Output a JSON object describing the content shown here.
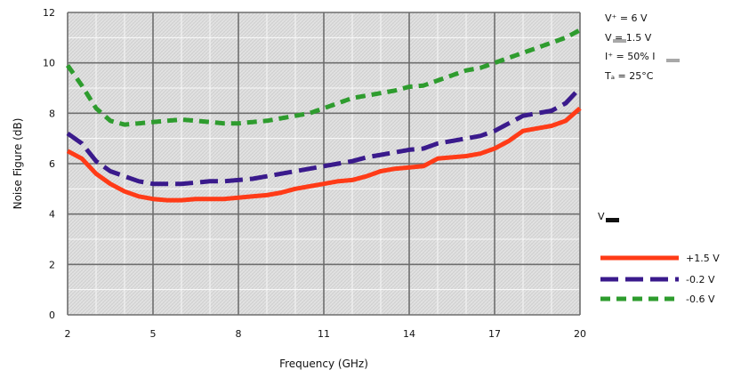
{
  "chart_data": {
    "type": "line",
    "title": "",
    "xlabel": "Frequency (GHz)",
    "ylabel": "Noise Figure (dB)",
    "xlim": [
      2,
      20
    ],
    "ylim": [
      0,
      12
    ],
    "xticks": [
      2,
      5,
      8,
      11,
      14,
      17,
      20
    ],
    "yticks": [
      0,
      2,
      4,
      6,
      8,
      10,
      12
    ],
    "grid": true,
    "legend_title": "V",
    "legend_placement": "right",
    "conditions": [
      "V⁺ = 6 V",
      "V = 1.5 V",
      "I⁺ = 50% I",
      "Tₐ = 25°C"
    ],
    "series": [
      {
        "name": "+1.5 V",
        "color": "#ff3b17",
        "dash": "solid",
        "x": [
          2,
          2.5,
          3,
          3.5,
          4,
          4.5,
          5,
          5.5,
          6,
          6.5,
          7,
          7.5,
          8,
          8.5,
          9,
          9.5,
          10,
          10.5,
          11,
          11.5,
          12,
          12.5,
          13,
          13.5,
          14,
          14.5,
          15,
          15.5,
          16,
          16.5,
          17,
          17.5,
          18,
          18.5,
          19,
          19.5,
          20
        ],
        "values": [
          6.5,
          6.2,
          5.6,
          5.2,
          4.9,
          4.7,
          4.6,
          4.55,
          4.55,
          4.6,
          4.6,
          4.6,
          4.65,
          4.7,
          4.75,
          4.85,
          5.0,
          5.1,
          5.2,
          5.3,
          5.35,
          5.5,
          5.7,
          5.8,
          5.85,
          5.9,
          6.2,
          6.25,
          6.3,
          6.4,
          6.6,
          6.9,
          7.3,
          7.4,
          7.5,
          7.7,
          8.2
        ]
      },
      {
        "name": "-0.2 V",
        "color": "#3a1a8c",
        "dash": "long-dash",
        "x": [
          2,
          2.5,
          3,
          3.5,
          4,
          4.5,
          5,
          5.5,
          6,
          6.5,
          7,
          7.5,
          8,
          8.5,
          9,
          9.5,
          10,
          10.5,
          11,
          11.5,
          12,
          12.5,
          13,
          13.5,
          14,
          14.5,
          15,
          15.5,
          16,
          16.5,
          17,
          17.5,
          18,
          18.5,
          19,
          19.5,
          20
        ],
        "values": [
          7.2,
          6.8,
          6.1,
          5.7,
          5.5,
          5.3,
          5.2,
          5.2,
          5.2,
          5.25,
          5.3,
          5.3,
          5.35,
          5.4,
          5.5,
          5.6,
          5.7,
          5.8,
          5.9,
          6.0,
          6.1,
          6.25,
          6.35,
          6.45,
          6.55,
          6.6,
          6.8,
          6.9,
          7.0,
          7.1,
          7.3,
          7.6,
          7.9,
          8.0,
          8.1,
          8.4,
          9.0
        ]
      },
      {
        "name": "-0.6 V",
        "color": "#2e9c2e",
        "dash": "short-dash",
        "x": [
          2,
          2.5,
          3,
          3.5,
          4,
          4.5,
          5,
          5.5,
          6,
          6.5,
          7,
          7.5,
          8,
          8.5,
          9,
          9.5,
          10,
          10.5,
          11,
          11.5,
          12,
          12.5,
          13,
          13.5,
          14,
          14.5,
          15,
          15.5,
          16,
          16.5,
          17,
          17.5,
          18,
          18.5,
          19,
          19.5,
          20
        ],
        "values": [
          9.9,
          9.1,
          8.2,
          7.7,
          7.55,
          7.6,
          7.65,
          7.7,
          7.75,
          7.7,
          7.65,
          7.6,
          7.6,
          7.65,
          7.7,
          7.8,
          7.9,
          8.0,
          8.2,
          8.4,
          8.6,
          8.7,
          8.8,
          8.9,
          9.05,
          9.1,
          9.3,
          9.5,
          9.7,
          9.8,
          10.0,
          10.2,
          10.4,
          10.6,
          10.8,
          11.0,
          11.3
        ]
      }
    ]
  }
}
